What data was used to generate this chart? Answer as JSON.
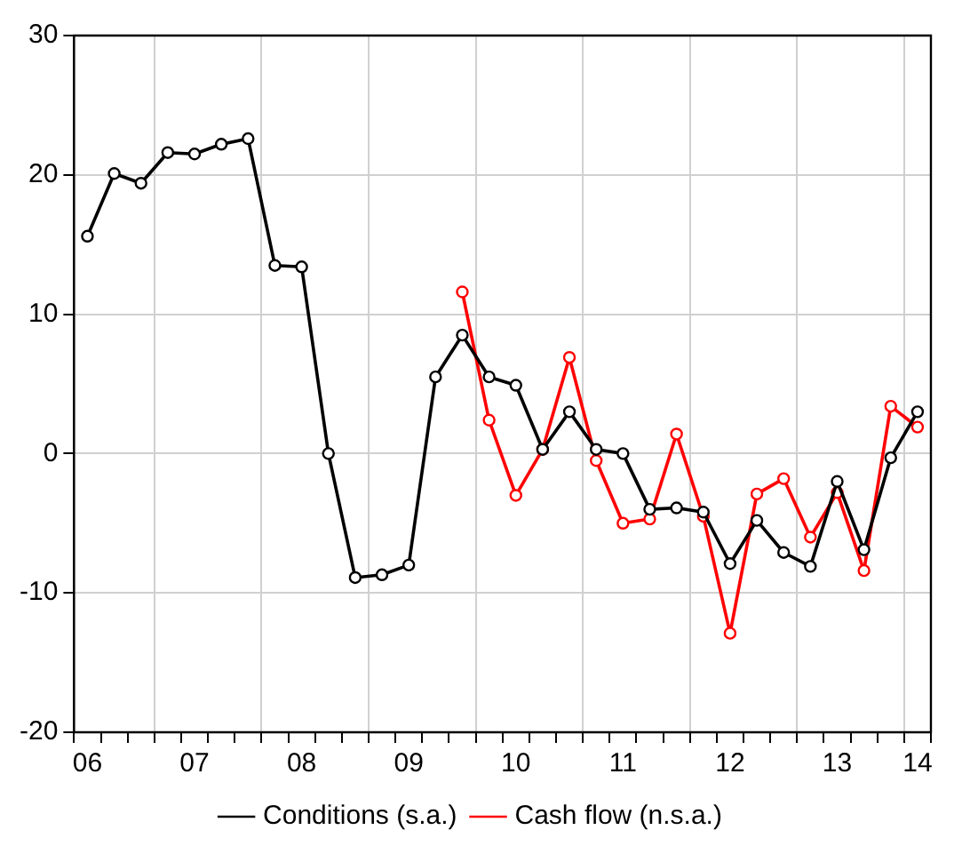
{
  "chart_data": {
    "type": "line",
    "categories": [
      "06",
      null,
      null,
      null,
      "07",
      null,
      null,
      null,
      "08",
      null,
      null,
      null,
      "09",
      null,
      null,
      null,
      "10",
      null,
      null,
      null,
      "11",
      null,
      null,
      null,
      "12",
      null,
      null,
      null,
      "13",
      null,
      null,
      "14"
    ],
    "series": [
      {
        "name": "Conditions (s.a.)",
        "color": "#000000",
        "values": [
          15.6,
          20.1,
          19.4,
          21.6,
          21.5,
          22.2,
          22.6,
          13.5,
          13.4,
          0,
          -8.9,
          -8.7,
          -8.0,
          5.5,
          8.5,
          5.5,
          4.9,
          0.3,
          3.0,
          0.3,
          0.0,
          -4.0,
          -3.9,
          -4.2,
          -7.9,
          -4.8,
          -7.1,
          -8.1,
          -2.0,
          -6.9,
          -0.3,
          3.0
        ]
      },
      {
        "name": "Cash flow (n.s.a.)",
        "color": "#ff0000",
        "values": [
          null,
          null,
          null,
          null,
          null,
          null,
          null,
          null,
          null,
          null,
          null,
          null,
          null,
          null,
          11.6,
          2.4,
          -3.0,
          0.3,
          6.9,
          -0.5,
          -5.0,
          -4.7,
          1.4,
          -4.5,
          -12.9,
          -2.9,
          -1.8,
          -6.0,
          -2.8,
          -8.4,
          3.4,
          1.9
        ]
      }
    ],
    "ylim": [
      -20,
      30
    ],
    "yticks": [
      -20,
      -10,
      0,
      10,
      20,
      30
    ],
    "grid": true,
    "legend": "bottom",
    "marker": "circle",
    "line_style": "solid"
  }
}
